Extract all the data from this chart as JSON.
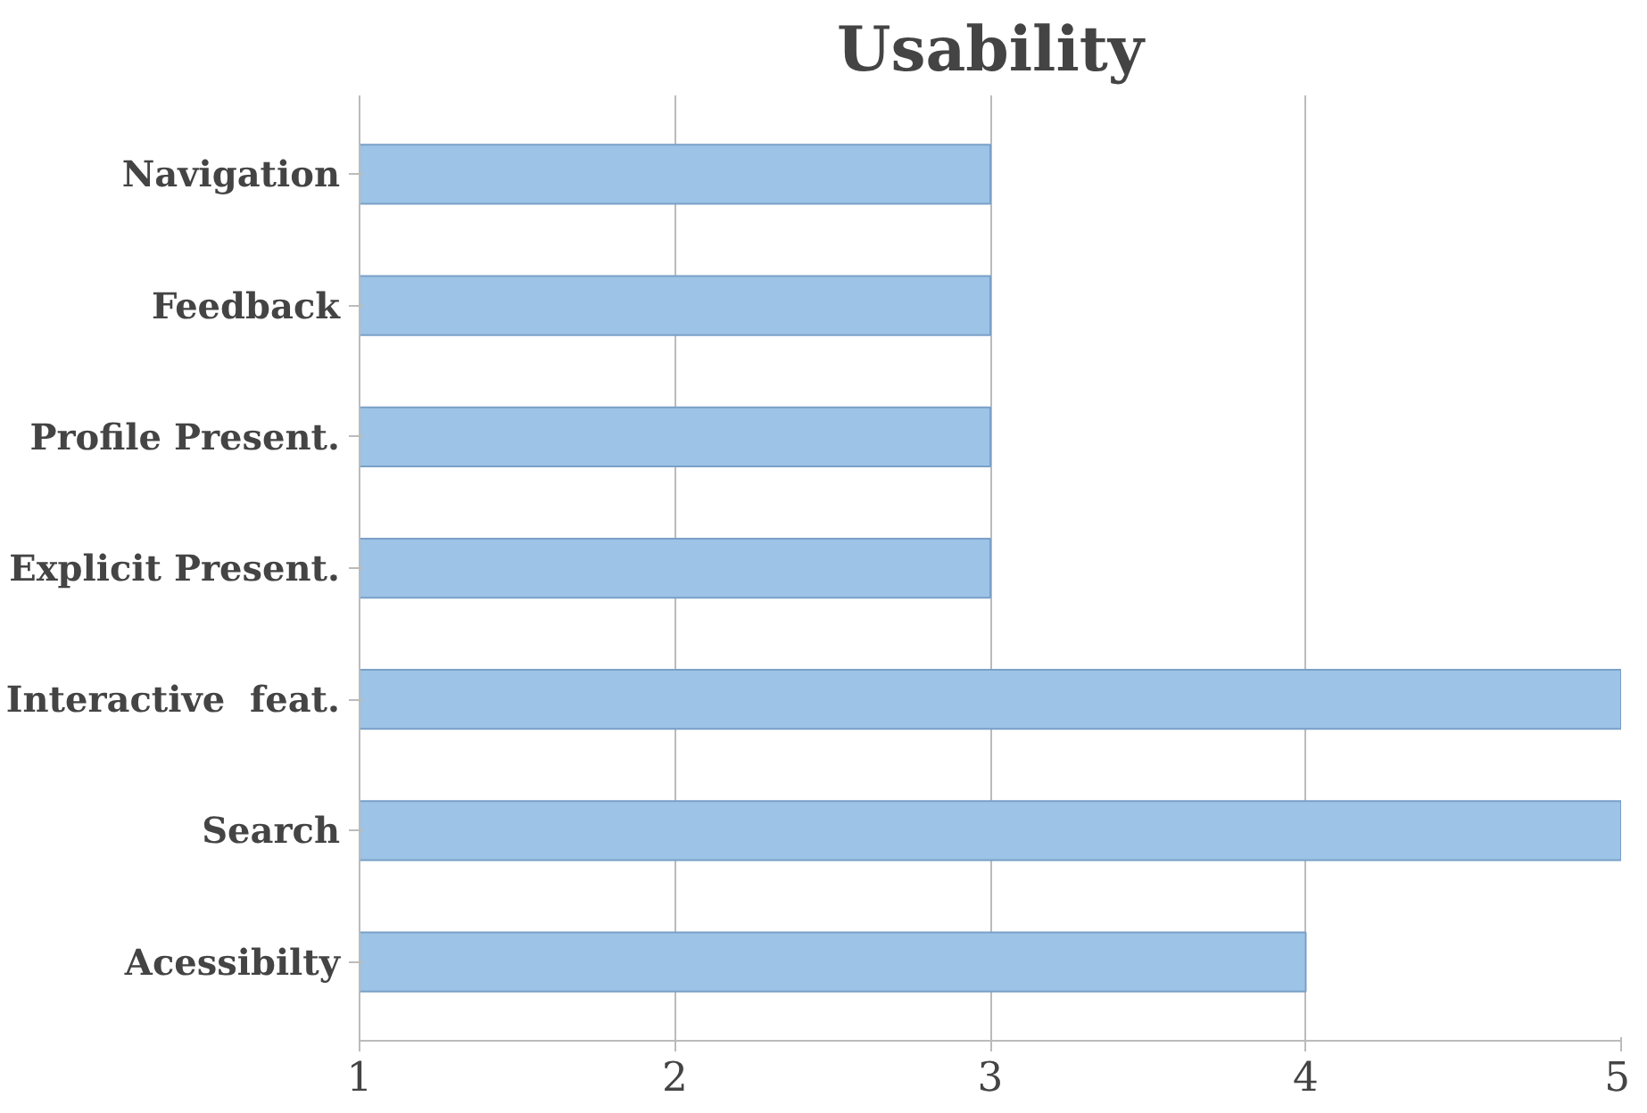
{
  "chart_data": {
    "type": "bar",
    "title": "Usability",
    "orientation": "horizontal",
    "categories": [
      "Navigation",
      "Feedback",
      "Profile Present.",
      "Explicit Present.",
      "Interactive  feat.",
      "Search",
      "Acessibilty"
    ],
    "values": [
      3,
      3,
      3,
      3,
      5,
      5,
      4
    ],
    "color": "#9dc3e6",
    "xlim": [
      1,
      5
    ],
    "xticks": [
      1,
      2,
      3,
      4,
      5
    ],
    "grid": "x"
  }
}
